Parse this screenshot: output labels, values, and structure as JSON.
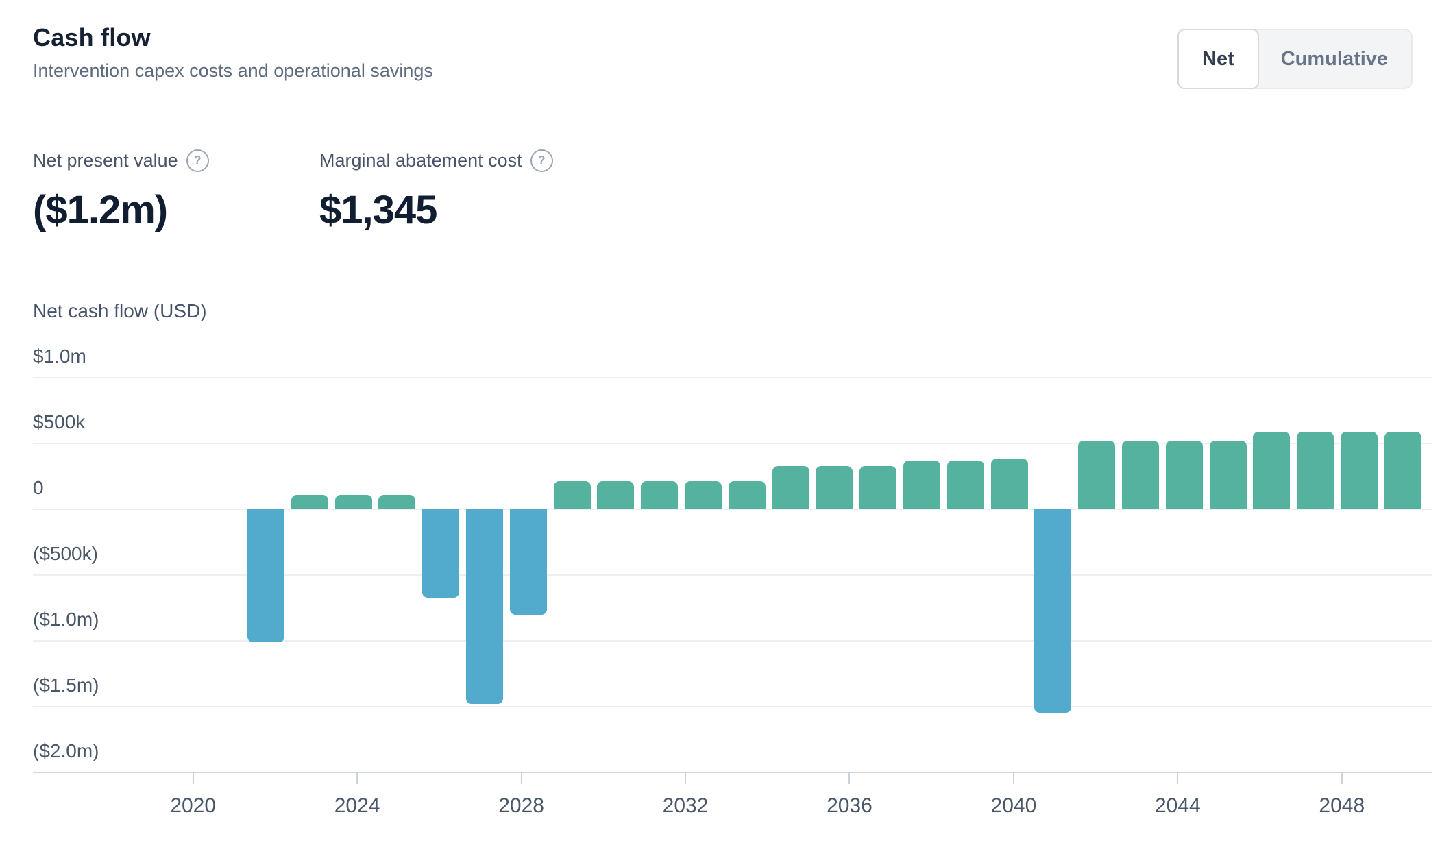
{
  "header": {
    "title": "Cash flow",
    "subtitle": "Intervention capex costs and operational savings"
  },
  "toggle": {
    "options": [
      {
        "label": "Net",
        "selected": true
      },
      {
        "label": "Cumulative",
        "selected": false
      }
    ]
  },
  "metrics": [
    {
      "label": "Net present value",
      "value": "($1.2m)",
      "help_icon": "?"
    },
    {
      "label": "Marginal abatement cost",
      "value": "$1,345",
      "help_icon": "?"
    }
  ],
  "chart_data": {
    "type": "bar",
    "title": "Net cash flow (USD)",
    "xlabel": "",
    "ylabel": "Net cash flow (USD)",
    "grid": true,
    "legend_position": "none",
    "ylim": [
      -2000000,
      1000000
    ],
    "x": [
      2022,
      2023,
      2024,
      2025,
      2026,
      2027,
      2028,
      2029,
      2030,
      2031,
      2032,
      2033,
      2034,
      2035,
      2036,
      2037,
      2038,
      2039,
      2040,
      2041,
      2042,
      2043,
      2044,
      2045,
      2046,
      2047,
      2048
    ],
    "values": [
      -1010000,
      110000,
      110000,
      110000,
      -670000,
      -1480000,
      -800000,
      215000,
      215000,
      215000,
      215000,
      215000,
      330000,
      330000,
      330000,
      370000,
      370000,
      385000,
      -1545000,
      520000,
      520000,
      520000,
      520000,
      590000,
      590000,
      590000,
      590000
    ],
    "y_ticks": [
      {
        "label": "$1.0m",
        "value": 1000000
      },
      {
        "label": "$500k",
        "value": 500000
      },
      {
        "label": "0",
        "value": 0
      },
      {
        "label": "($500k)",
        "value": -500000
      },
      {
        "label": "($1.0m)",
        "value": -1000000
      },
      {
        "label": "($1.5m)",
        "value": -1500000
      },
      {
        "label": "($2.0m)",
        "value": -2000000
      }
    ],
    "x_ticks": [
      2020,
      2024,
      2028,
      2032,
      2036,
      2040,
      2044,
      2048
    ],
    "colors": {
      "positive": "#54b29e",
      "negative": "#52aacd"
    }
  }
}
